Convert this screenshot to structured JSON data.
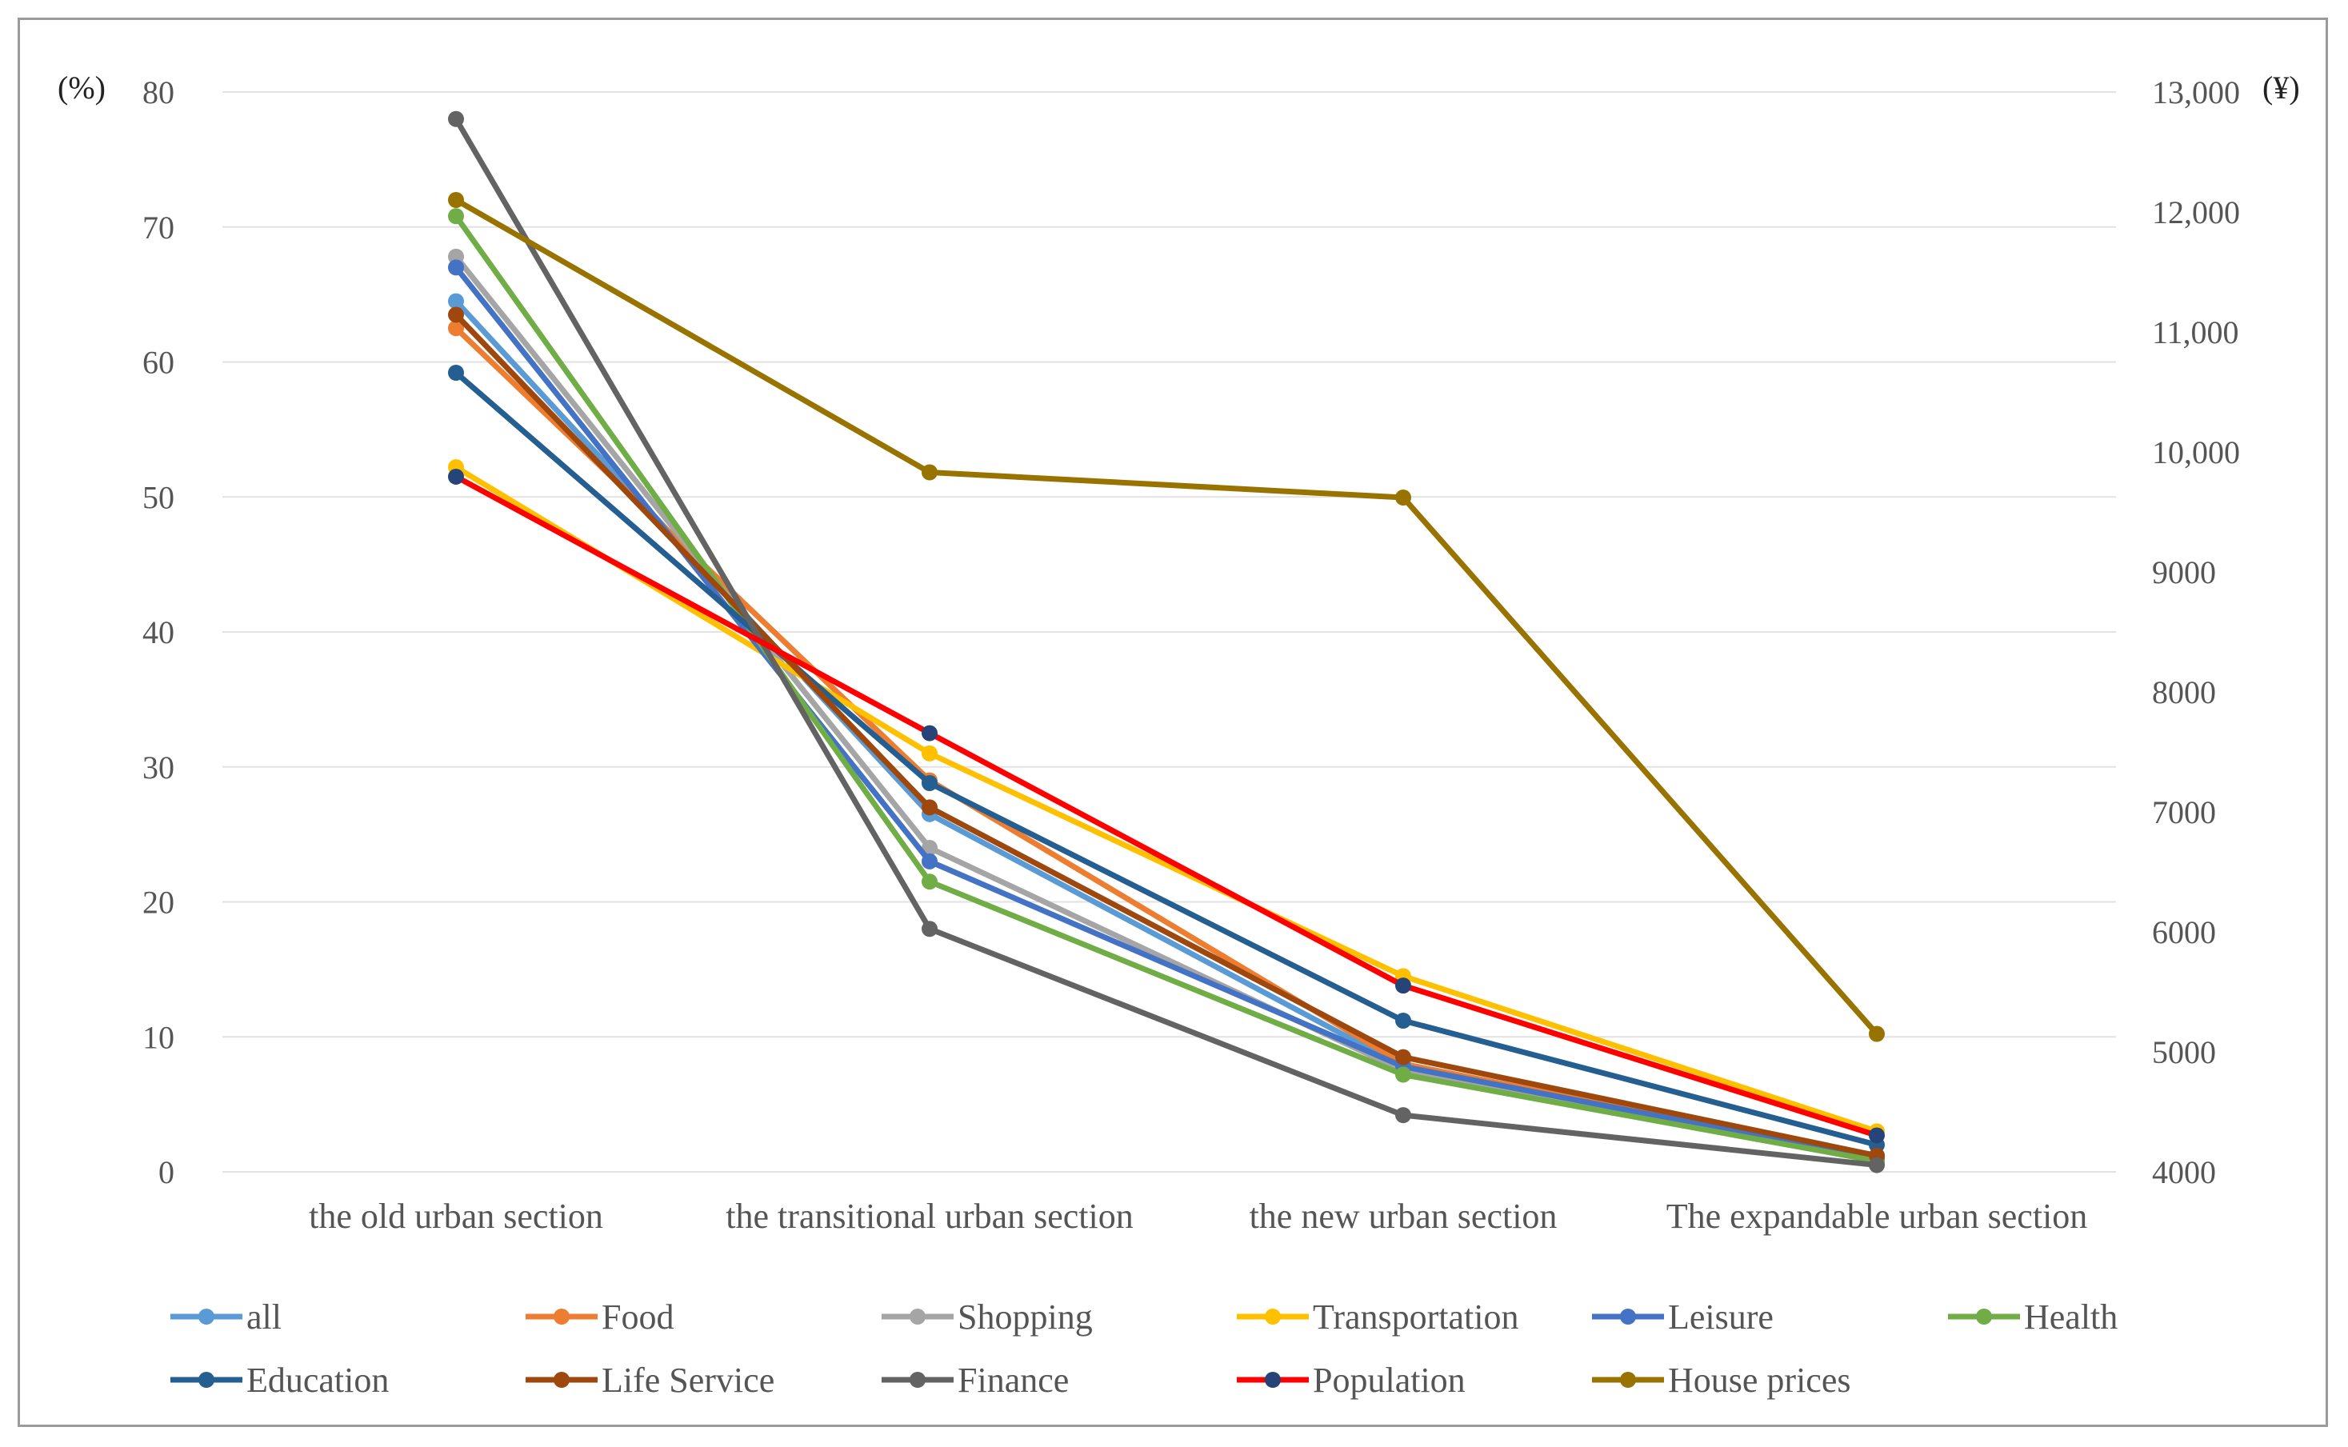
{
  "chart_data": {
    "type": "line",
    "categories": [
      "the old urban section",
      "the transitional urban section",
      "the new urban section",
      "The expandable urban section"
    ],
    "y_left": {
      "unit": "(%)",
      "min": 0,
      "max": 80,
      "ticks": [
        "0",
        "10",
        "20",
        "30",
        "40",
        "50",
        "60",
        "70",
        "80"
      ]
    },
    "y_right": {
      "unit": "(¥)",
      "min": 4000,
      "max": 13000,
      "ticks": [
        "4000",
        "5000",
        "6000",
        "7000",
        "8000",
        "9000",
        "10,000",
        "11,000",
        "12,000",
        "13,000"
      ]
    },
    "series": [
      {
        "name": "all",
        "color": "#5b9bd5",
        "axis": "left",
        "values": [
          64.5,
          26.5,
          7.8,
          1.2
        ]
      },
      {
        "name": "Food",
        "color": "#ed7d31",
        "axis": "left",
        "values": [
          62.5,
          29.0,
          8.0,
          1.0
        ]
      },
      {
        "name": "Shopping",
        "color": "#a5a5a5",
        "axis": "left",
        "values": [
          67.8,
          24.0,
          7.5,
          0.8
        ]
      },
      {
        "name": "Transportation",
        "color": "#ffc000",
        "axis": "left",
        "values": [
          52.2,
          31.0,
          14.5,
          3.0
        ]
      },
      {
        "name": "Leisure",
        "color": "#4472c4",
        "axis": "left",
        "values": [
          67.0,
          23.0,
          7.8,
          1.0
        ]
      },
      {
        "name": "Health",
        "color": "#70ad47",
        "axis": "left",
        "values": [
          70.8,
          21.5,
          7.2,
          0.8
        ]
      },
      {
        "name": "Education",
        "color": "#255e91",
        "axis": "left",
        "values": [
          59.2,
          28.8,
          11.2,
          2.0
        ]
      },
      {
        "name": "Life Service",
        "color": "#9e480e",
        "axis": "left",
        "values": [
          63.5,
          27.0,
          8.5,
          1.2
        ]
      },
      {
        "name": "Finance",
        "color": "#636363",
        "axis": "left",
        "values": [
          78.0,
          18.0,
          4.2,
          0.5
        ]
      },
      {
        "name": "Population",
        "color": "#ff0000",
        "marker_color": "#264478",
        "axis": "left",
        "values": [
          51.5,
          32.5,
          13.8,
          2.7
        ]
      },
      {
        "name": "House prices",
        "color": "#997300",
        "axis": "right",
        "values": [
          12100,
          9830,
          9620,
          5150
        ]
      }
    ],
    "legend": "bottom",
    "grid": true
  }
}
